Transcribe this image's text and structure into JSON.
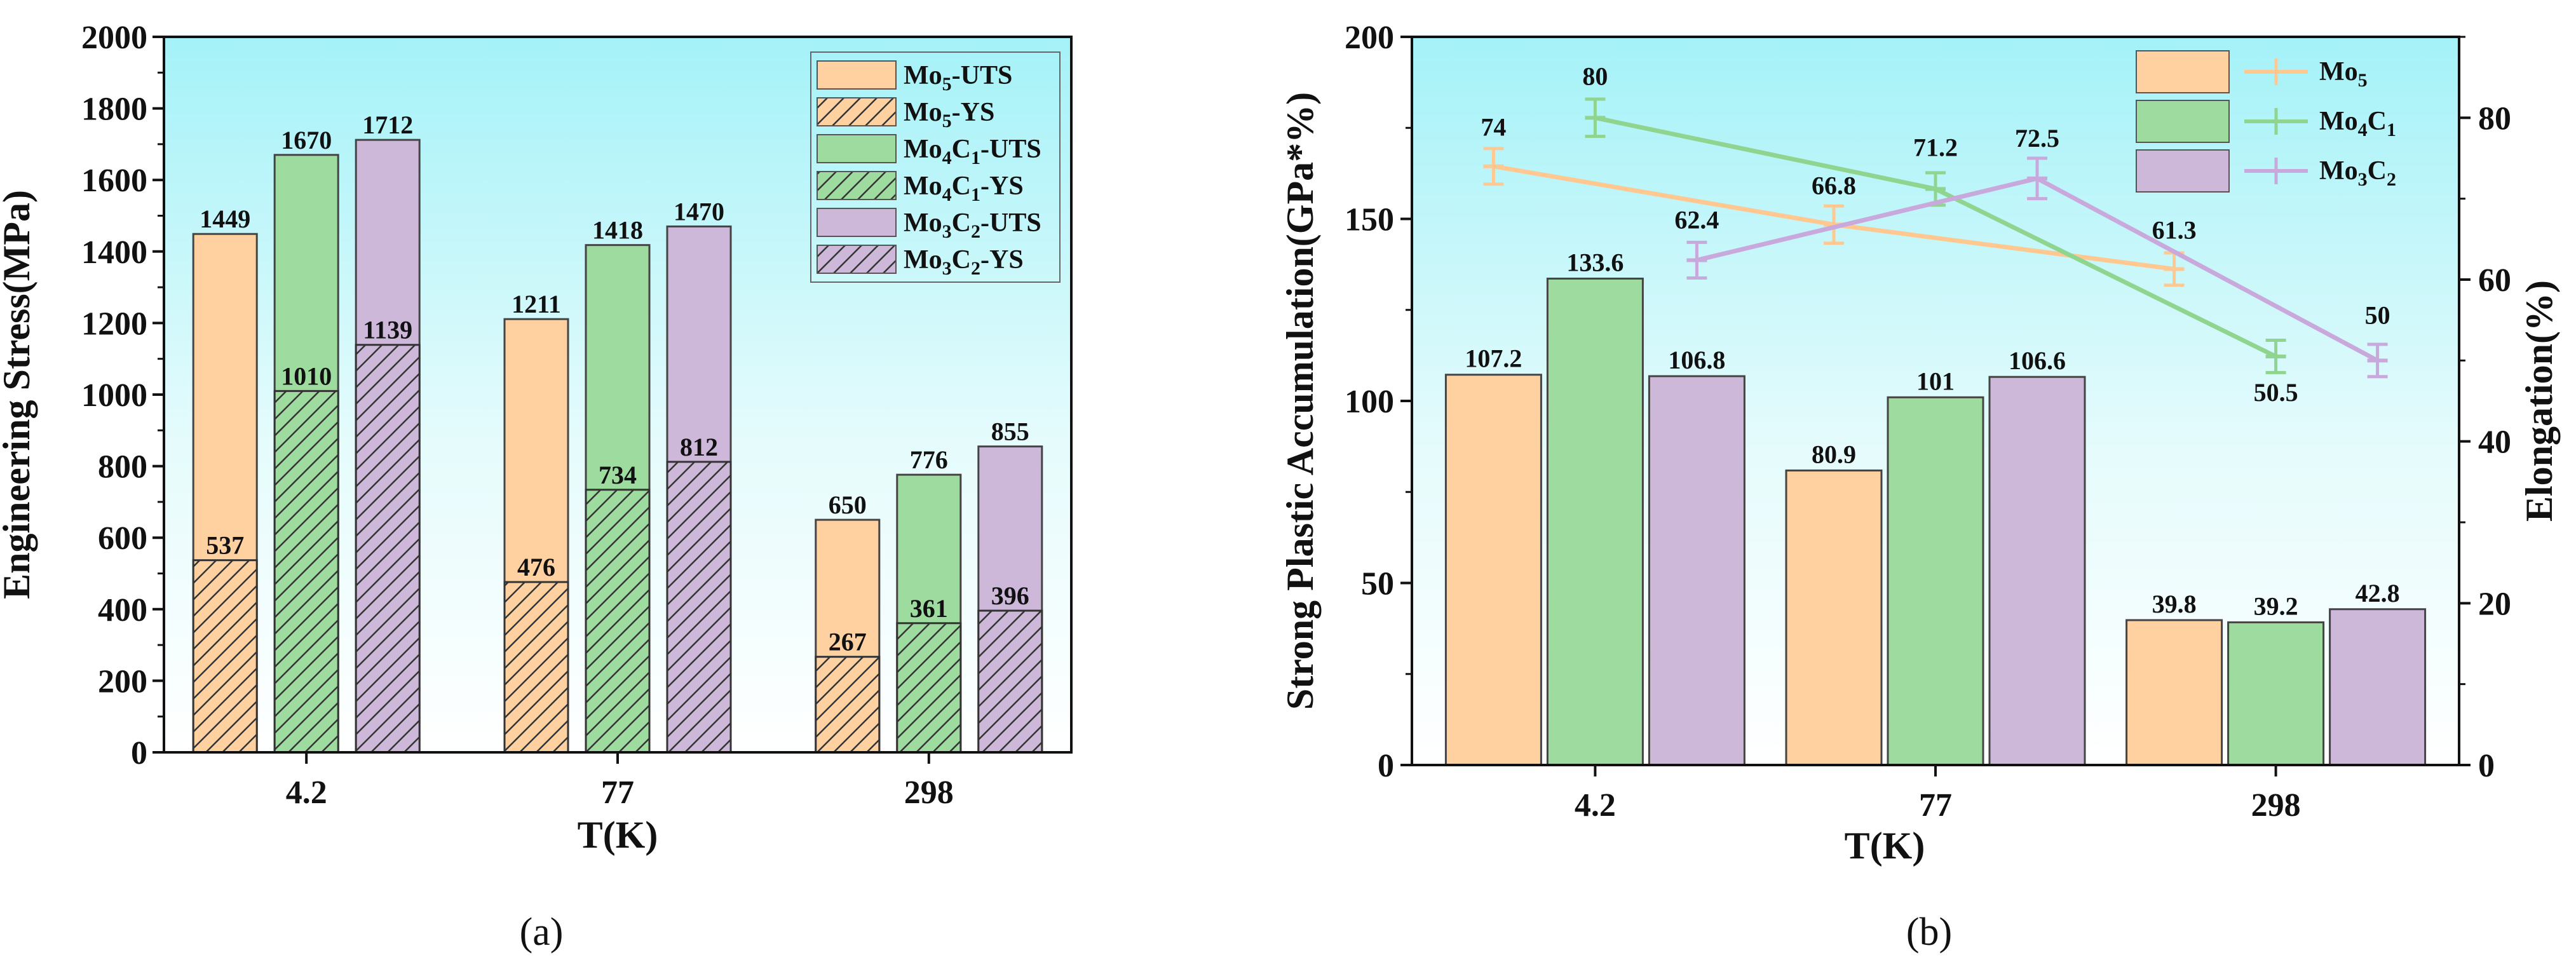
{
  "colors": {
    "orange": "#FFD0A0",
    "green": "#9EDB9E",
    "purple": "#CDB8DA",
    "orange_line": "#FFC891",
    "green_line": "#8FD58F",
    "purple_line": "#C9A8DC",
    "edge": "#444444"
  },
  "chart_data": [
    {
      "type": "bar",
      "panel_caption": "(a)",
      "xlabel": "T(K)",
      "ylabel": "Engineering Stress(MPa)",
      "ylim": [
        0,
        2000
      ],
      "yticks": [
        "0",
        "200",
        "400",
        "600",
        "800",
        "1000",
        "1200",
        "1400",
        "1600",
        "1800",
        "2000"
      ],
      "categories": [
        "4.2",
        "77",
        "298"
      ],
      "series": [
        {
          "name": "Mo5",
          "label": [
            "Mo",
            "5",
            "-UTS"
          ],
          "uts": [
            1449,
            1211,
            650
          ],
          "ys": [
            537,
            476,
            267
          ],
          "color": "orange"
        },
        {
          "name": "Mo4C1",
          "label": [
            "Mo",
            "4",
            "C",
            "1",
            "-UTS"
          ],
          "uts": [
            1670,
            1418,
            776
          ],
          "ys": [
            1010,
            734,
            361
          ],
          "color": "green"
        },
        {
          "name": "Mo3C2",
          "label": [
            "Mo",
            "3",
            "C",
            "2",
            "-UTS"
          ],
          "uts": [
            1712,
            1470,
            855
          ],
          "ys": [
            1139,
            812,
            396
          ],
          "color": "purple"
        }
      ],
      "legend": [
        {
          "parts": [
            "Mo",
            "5",
            "-UTS"
          ],
          "color": "orange",
          "hatch": false
        },
        {
          "parts": [
            "Mo",
            "5",
            "-YS"
          ],
          "color": "orange",
          "hatch": true
        },
        {
          "parts": [
            "Mo",
            "4",
            "C",
            "1",
            "-UTS"
          ],
          "color": "green",
          "hatch": false
        },
        {
          "parts": [
            "Mo",
            "4",
            "C",
            "1",
            "-YS"
          ],
          "color": "green",
          "hatch": true
        },
        {
          "parts": [
            "Mo",
            "3",
            "C",
            "2",
            "-UTS"
          ],
          "color": "purple",
          "hatch": false
        },
        {
          "parts": [
            "Mo",
            "3",
            "C",
            "2",
            "-YS"
          ],
          "color": "purple",
          "hatch": true
        }
      ],
      "legend_position": "top-right"
    },
    {
      "type": "bar+line",
      "panel_caption": "(b)",
      "xlabel": "T(K)",
      "ylabel": "Strong Plastic Accumulation(GPa*%)",
      "y2label": "Elongation(%)",
      "ylim": [
        0,
        200
      ],
      "yticks": [
        "0",
        "50",
        "100",
        "150",
        "200"
      ],
      "y2lim": [
        0,
        90
      ],
      "y2ticks": [
        "0",
        "20",
        "40",
        "60",
        "80"
      ],
      "categories": [
        "4.2",
        "77",
        "298"
      ],
      "bars": [
        {
          "name": "Mo5",
          "values": [
            107.2,
            80.9,
            39.8
          ],
          "labels": [
            "107.2",
            "80.9",
            "39.8"
          ],
          "color": "orange"
        },
        {
          "name": "Mo4C1",
          "values": [
            133.6,
            101,
            39.2
          ],
          "labels": [
            "133.6",
            "101",
            "39.2"
          ],
          "color": "green"
        },
        {
          "name": "Mo3C2",
          "values": [
            106.8,
            106.6,
            42.8
          ],
          "labels": [
            "106.8",
            "106.6",
            "42.8"
          ],
          "color": "purple"
        }
      ],
      "lines": [
        {
          "name": "Mo5",
          "values": [
            74,
            66.8,
            61.3
          ],
          "labels": [
            "74",
            "66.8",
            "61.3"
          ],
          "error": [
            2.2,
            2.3,
            2.0
          ],
          "color": "orange_line"
        },
        {
          "name": "Mo4C1",
          "values": [
            80,
            71.2,
            50.5
          ],
          "labels": [
            "80",
            "71.2",
            "50.5"
          ],
          "error": [
            2.3,
            2.0,
            2.0
          ],
          "color": "green_line"
        },
        {
          "name": "Mo3C2",
          "values": [
            62.4,
            72.5,
            50
          ],
          "labels": [
            "62.4",
            "72.5",
            "50"
          ],
          "error": [
            2.2,
            2.5,
            2.0
          ],
          "color": "purple_line"
        }
      ],
      "legend": [
        {
          "parts": [
            "Mo",
            "5"
          ],
          "color": "orange",
          "line": "orange_line"
        },
        {
          "parts": [
            "Mo",
            "4",
            "C",
            "1"
          ],
          "color": "green",
          "line": "green_line"
        },
        {
          "parts": [
            "Mo",
            "3",
            "C",
            "2"
          ],
          "color": "purple",
          "line": "purple_line"
        }
      ],
      "legend_position": "top-right"
    }
  ]
}
